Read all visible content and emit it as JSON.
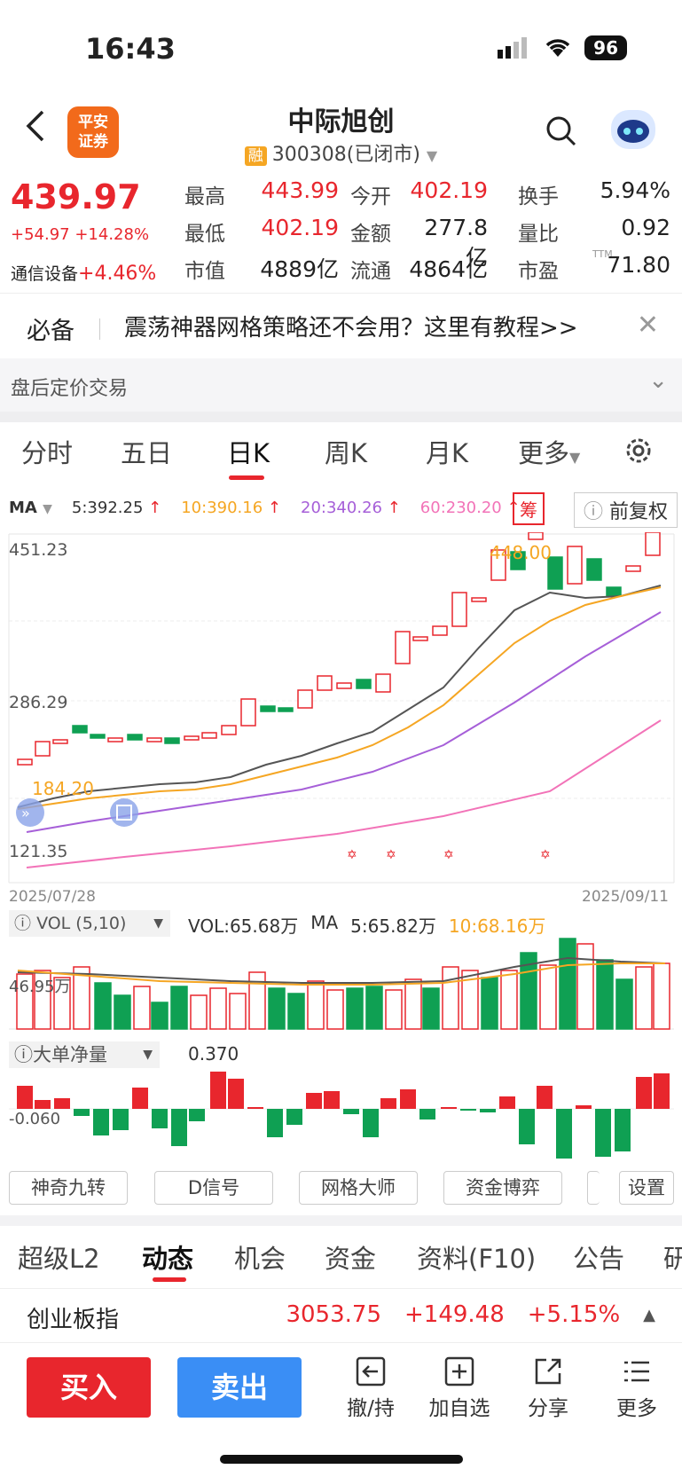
{
  "status_bar": {
    "time": "16:43",
    "battery": "96"
  },
  "header": {
    "broker_logo": "平安证券",
    "stock_name": "中际旭创",
    "rong_badge": "融",
    "stock_code": "300308(已闭市)"
  },
  "quote": {
    "price": "439.97",
    "change": "+54.97 +14.28%",
    "sector_name": "通信设备",
    "sector_change": "+4.46%",
    "rows": [
      [
        {
          "label": "最高",
          "value": "443.99",
          "color": "red"
        },
        {
          "label": "今开",
          "value": "402.19",
          "color": "red"
        },
        {
          "label": "换手",
          "value": "5.94%",
          "color": "black"
        }
      ],
      [
        {
          "label": "最低",
          "value": "402.19",
          "color": "red"
        },
        {
          "label": "金额",
          "value": "277.8亿",
          "color": "black"
        },
        {
          "label": "量比",
          "value": "0.92",
          "color": "black"
        }
      ],
      [
        {
          "label": "市值",
          "value": "4889亿",
          "color": "black"
        },
        {
          "label": "流通",
          "value": "4864亿",
          "color": "black"
        },
        {
          "label": "市盈",
          "value": "71.80",
          "color": "black",
          "sup": "TTM"
        }
      ]
    ]
  },
  "banner": {
    "tag": "必备",
    "text": "震荡神器网格策略还不会用？这里有教程>>"
  },
  "after_hours": "盘后定价交易",
  "period_tabs": [
    "分时",
    "五日",
    "日K",
    "周K",
    "月K",
    "更多"
  ],
  "ma": {
    "label": "MA",
    "items": [
      {
        "text": "5:392.25",
        "color": "#333"
      },
      {
        "text": "10:390.16",
        "color": "#f5a623"
      },
      {
        "text": "20:340.26",
        "color": "#a65fd8"
      },
      {
        "text": "60:230.20",
        "color": "#f273b8"
      }
    ],
    "chou": "筹",
    "fuquan": "前复权"
  },
  "kline": {
    "y_labels": [
      "451.23",
      "286.29",
      "121.35"
    ],
    "max_label": "448.00",
    "min_label": "184.20",
    "date_start": "2025/07/28",
    "date_end": "2025/09/11"
  },
  "volume": {
    "title": "VOL (5,10)",
    "vol": "VOL:65.68万",
    "ma": "MA",
    "ma5": "5:65.82万",
    "ma10": "10:68.16万",
    "y_label": "46.95万"
  },
  "flow": {
    "title": "大单净量",
    "value": "0.370",
    "y_label": "-0.060"
  },
  "tools": [
    "神奇九转",
    "D信号",
    "网格大师",
    "资金博弈",
    "设置"
  ],
  "bottom_tabs": [
    "超级L2",
    "动态",
    "机会",
    "资金",
    "资料(F10)",
    "公告",
    "研"
  ],
  "index_bar": {
    "name": "创业板指",
    "value": "3053.75",
    "change": "+149.48",
    "pct": "+5.15%"
  },
  "trade": {
    "buy": "买入",
    "sell": "卖出",
    "actions": [
      "撤/持",
      "加自选",
      "分享",
      "更多"
    ]
  }
}
